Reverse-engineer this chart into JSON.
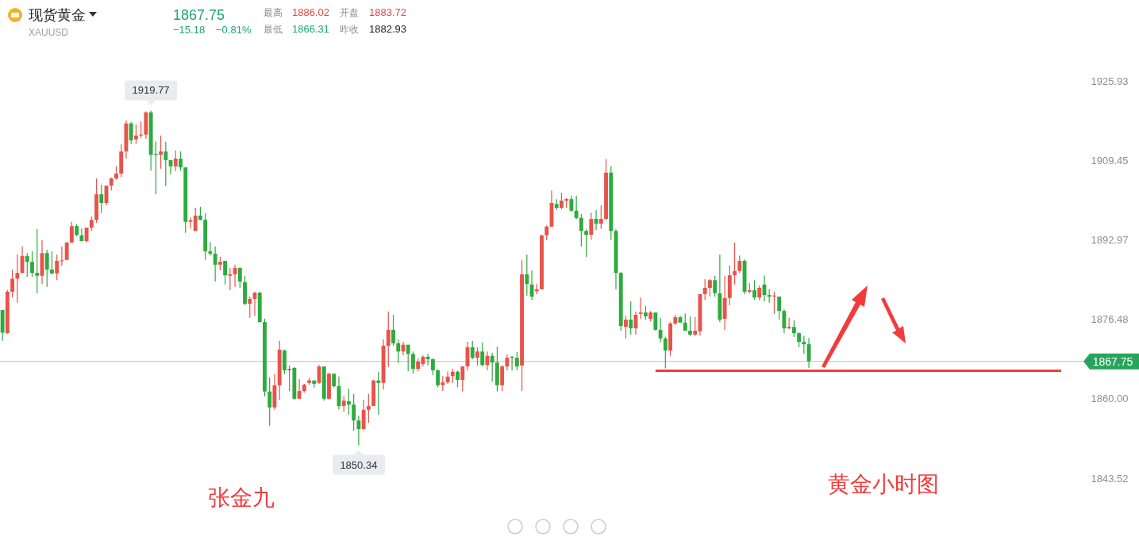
{
  "chart_data": {
    "type": "candlestick",
    "title": "现货黄金",
    "subtitle": "XAUUSD",
    "categories": [
      null,
      null,
      null,
      null,
      null,
      null,
      null,
      null,
      null,
      null,
      null,
      null,
      null,
      null,
      null,
      null,
      null,
      null,
      null,
      null,
      null,
      null,
      null,
      null,
      null,
      null,
      null,
      null,
      null,
      null,
      null,
      null,
      null,
      null,
      null,
      null,
      null,
      null,
      null,
      null,
      null,
      null,
      null,
      null,
      null,
      null,
      null,
      null,
      null,
      null,
      null,
      null,
      null,
      null,
      null,
      null,
      null,
      null,
      null,
      null,
      null,
      null,
      null,
      null,
      null,
      null,
      null,
      null,
      null,
      null,
      null,
      null,
      null,
      null,
      null,
      null,
      null,
      null,
      null,
      null,
      null,
      null,
      null,
      null,
      null,
      null,
      null,
      null,
      null,
      null,
      null,
      null,
      null,
      null,
      null,
      null,
      null,
      null,
      null,
      null,
      null,
      null,
      null,
      null,
      null,
      null,
      null,
      null,
      null,
      null,
      null,
      null,
      null,
      null,
      null,
      null,
      null,
      null,
      null,
      null,
      null,
      null,
      null,
      null,
      null,
      null,
      null,
      null,
      null,
      null,
      null,
      null,
      null,
      null,
      null,
      null,
      null,
      null,
      null,
      null,
      null,
      null,
      null,
      null,
      null,
      null,
      null,
      null,
      null,
      null,
      null,
      null,
      null,
      null,
      null,
      null,
      null,
      null,
      null,
      null,
      null,
      null,
      null,
      null,
      null,
      null,
      null,
      null,
      null,
      null,
      null,
      null,
      null,
      null,
      null,
      null,
      null,
      null,
      null,
      null,
      null,
      null,
      null,
      null,
      null,
      null,
      null,
      null,
      null,
      null,
      null,
      null,
      null,
      null,
      null,
      null,
      null,
      null,
      null,
      null,
      null,
      null,
      null,
      null,
      null,
      null,
      null,
      null,
      null,
      null,
      null,
      null,
      null,
      null,
      null,
      null,
      null,
      null,
      null
    ],
    "colors": [
      "#2dab3e",
      "#e8534a",
      "#e8534a",
      "#e8534a",
      "#e8534a",
      "#2dab3e",
      "#2dab3e",
      "#2dab3e",
      "#e8534a",
      "#2dab3e",
      "#2dab3e",
      "#e8534a",
      "#e8534a",
      "#e8534a",
      "#e8534a",
      "#2dab3e",
      "#2dab3e",
      "#e8534a",
      "#e8534a",
      "#e8534a",
      "#2dab3e",
      "#e8534a",
      "#e8534a",
      "#e8534a",
      "#e8534a",
      "#e8534a",
      "#2dab3e",
      "#e8534a",
      "#e8534a",
      "#e8534a",
      "#2dab3e",
      "#2dab3e",
      "#e8534a",
      "#2dab3e",
      "#2dab3e",
      "#e8534a",
      "#2dab3e",
      "#2dab3e",
      "#e8534a",
      "#e8534a",
      "#2dab3e",
      "#2dab3e",
      "#2dab3e",
      "#2dab3e",
      "#e8534a",
      "#2dab3e",
      "#e8534a",
      "#e8534a",
      "#2dab3e",
      "#2dab3e",
      "#e8534a",
      "#e8534a",
      "#2dab3e",
      "#2dab3e",
      "#2dab3e",
      "#e8534a",
      "#e8534a",
      "#2dab3e",
      "#e8534a",
      "#2dab3e",
      "#e8534a",
      "#e8534a",
      "#e8534a",
      "#2dab3e",
      "#e8534a",
      "#2dab3e",
      "#e8534a",
      "#2dab3e",
      "#2dab3e",
      "#e8534a",
      "#2dab3e",
      "#2dab3e",
      "#2dab3e",
      "#e8534a",
      "#e8534a",
      "#e8534a",
      "#2dab3e",
      "#e8534a",
      "#e8534a",
      "#2dab3e",
      "#2dab3e",
      "#e8534a",
      "#2dab3e",
      "#2dab3e",
      "#e8534a",
      "#e8534a",
      "#2dab3e",
      "#2dab3e",
      "#2dab3e",
      "#e8534a",
      "#e8534a",
      "#e8534a",
      "#2dab3e",
      "#e8534a",
      "#e8534a",
      "#2dab3e",
      "#e8534a",
      "#2dab3e",
      "#e8534a",
      "#2dab3e",
      "#2dab3e",
      "#e8534a",
      "#e8534a",
      "#2dab3e",
      "#2dab3e",
      "#e8534a",
      "#2dab3e",
      "#2dab3e",
      "#e8534a",
      "#e8534a",
      "#e8534a",
      "#e8534a",
      "#2dab3e",
      "#e8534a",
      "#e8534a",
      "#2dab3e",
      "#2dab3e",
      "#2dab3e",
      "#2dab3e",
      "#e8534a",
      "#2dab3e",
      "#e8534a",
      "#e8534a",
      "#2dab3e",
      "#2dab3e",
      "#2dab3e",
      "#e8534a",
      "#2dab3e",
      "#e8534a",
      "#e8534a",
      "#2dab3e",
      "#e8534a",
      "#2dab3e",
      "#2dab3e",
      "#2dab3e",
      "#e8534a",
      "#e8534a",
      "#2dab3e",
      "#2dab3e",
      "#2dab3e",
      "#e8534a",
      "#e8534a",
      "#e8534a",
      "#e8534a",
      "#2dab3e",
      "#2dab3e",
      "#e8534a",
      "#e8534a",
      "#e8534a",
      "#e8534a",
      "#2dab3e",
      "#e8534a",
      "#2dab3e",
      "#e8534a",
      "#2dab3e",
      "#2dab3e",
      "#e8534a",
      "#2dab3e",
      "#2dab3e",
      "#e8534a",
      "#2dab3e",
      "#2dab3e",
      "#2dab3e",
      "#2dab3e",
      null,
      null,
      null,
      null,
      null,
      null,
      null,
      null,
      null,
      null,
      null,
      null,
      null,
      null,
      null,
      null,
      null,
      null,
      null,
      null,
      null,
      null,
      null,
      null,
      null,
      null,
      null,
      null,
      null,
      null,
      null,
      null,
      null,
      null,
      null,
      null,
      null,
      null,
      null,
      null,
      null,
      null,
      null,
      null,
      null,
      null,
      null,
      null,
      null,
      null,
      null,
      null,
      null,
      null,
      null
    ],
    "ohlc": [
      [
        1878.4,
        1878.4,
        1872.0,
        1873.7
      ],
      [
        1873.6,
        1882.5,
        1873.5,
        1882.2
      ],
      [
        1882.2,
        1886.8,
        1881.0,
        1884.9
      ],
      [
        1884.9,
        1889.9,
        1879.9,
        1886.1
      ],
      [
        1886.1,
        1891.6,
        1886.0,
        1889.6
      ],
      [
        1889.6,
        1890.2,
        1885.3,
        1888.4
      ],
      [
        1888.4,
        1890.6,
        1885.3,
        1886.1
      ],
      [
        1886.1,
        1895.2,
        1881.9,
        1885.5
      ],
      [
        1885.5,
        1892.9,
        1883.8,
        1890.2
      ],
      [
        1890.2,
        1890.9,
        1883.2,
        1886.8
      ],
      [
        1886.8,
        1890.6,
        1885.8,
        1886.0
      ],
      [
        1886.0,
        1889.9,
        1884.6,
        1888.6
      ],
      [
        1888.6,
        1891.6,
        1887.6,
        1888.7
      ],
      [
        1888.8,
        1892.5,
        1888.8,
        1892.4
      ],
      [
        1892.4,
        1896.7,
        1892.4,
        1895.8
      ],
      [
        1895.8,
        1896.2,
        1893.7,
        1894.0
      ],
      [
        1893.9,
        1895.3,
        1892.7,
        1892.7
      ],
      [
        1892.7,
        1895.5,
        1892.4,
        1895.5
      ],
      [
        1895.5,
        1897.8,
        1894.8,
        1897.1
      ],
      [
        1897.1,
        1905.7,
        1896.5,
        1902.4
      ],
      [
        1902.4,
        1904.4,
        1898.5,
        1900.6
      ],
      [
        1900.6,
        1904.2,
        1900.1,
        1904.2
      ],
      [
        1904.2,
        1905.9,
        1903.2,
        1905.7
      ],
      [
        1905.7,
        1908.2,
        1905.4,
        1906.7
      ],
      [
        1906.7,
        1912.8,
        1906.0,
        1911.3
      ],
      [
        1911.3,
        1917.7,
        1909.8,
        1917.1
      ],
      [
        1917.1,
        1917.4,
        1912.8,
        1913.6
      ],
      [
        1913.8,
        1916.9,
        1912.9,
        1914.6
      ],
      [
        1914.6,
        1917.5,
        1914.1,
        1914.8
      ],
      [
        1914.8,
        1919.6,
        1913.9,
        1919.4
      ],
      [
        1919.4,
        1919.77,
        1907.3,
        1910.6
      ],
      [
        1910.8,
        1913.4,
        1902.4,
        1910.7
      ],
      [
        1910.6,
        1914.6,
        1907.7,
        1911.3
      ],
      [
        1911.3,
        1913.3,
        1904.1,
        1909.5
      ],
      [
        1909.5,
        1909.5,
        1906.5,
        1908.2
      ],
      [
        1908.2,
        1911.5,
        1907.2,
        1909.8
      ],
      [
        1909.8,
        1911.3,
        1907.3,
        1908.0
      ],
      [
        1908.0,
        1908.0,
        1894.4,
        1896.7
      ],
      [
        1896.7,
        1897.6,
        1895.3,
        1897.0
      ],
      [
        1894.8,
        1899.6,
        1894.8,
        1898.0
      ],
      [
        1898.0,
        1899.8,
        1897.0,
        1897.1
      ],
      [
        1897.1,
        1898.5,
        1888.8,
        1890.6
      ],
      [
        1890.6,
        1892.5,
        1889.7,
        1890.1
      ],
      [
        1890.1,
        1891.6,
        1884.3,
        1887.8
      ],
      [
        1887.8,
        1889.4,
        1886.6,
        1888.4
      ],
      [
        1888.6,
        1888.6,
        1883.7,
        1885.6
      ],
      [
        1885.5,
        1887.1,
        1882.5,
        1885.8
      ],
      [
        1885.8,
        1887.8,
        1883.2,
        1887.1
      ],
      [
        1887.1,
        1887.3,
        1883.0,
        1884.3
      ],
      [
        1884.2,
        1885.5,
        1879.4,
        1879.7
      ],
      [
        1879.7,
        1881.2,
        1876.8,
        1880.7
      ],
      [
        1880.7,
        1882.2,
        1877.2,
        1882.0
      ],
      [
        1882.0,
        1882.2,
        1875.8,
        1875.9
      ],
      [
        1875.9,
        1876.6,
        1860.5,
        1861.5
      ],
      [
        1861.5,
        1864.4,
        1854.4,
        1858.2
      ],
      [
        1858.2,
        1865.1,
        1857.7,
        1862.8
      ],
      [
        1862.8,
        1872.0,
        1859.8,
        1870.2
      ],
      [
        1870.0,
        1870.2,
        1865.1,
        1865.9
      ],
      [
        1865.9,
        1866.9,
        1861.6,
        1866.2
      ],
      [
        1866.4,
        1866.6,
        1859.8,
        1860.0
      ],
      [
        1860.0,
        1864.1,
        1860.0,
        1861.6
      ],
      [
        1861.6,
        1863.1,
        1861.3,
        1862.9
      ],
      [
        1863.3,
        1864.3,
        1862.9,
        1863.8
      ],
      [
        1863.8,
        1863.8,
        1862.3,
        1863.1
      ],
      [
        1863.3,
        1867.0,
        1863.1,
        1866.7
      ],
      [
        1866.7,
        1866.7,
        1859.6,
        1860.0
      ],
      [
        1860.0,
        1865.4,
        1859.8,
        1865.2
      ],
      [
        1865.2,
        1865.2,
        1862.3,
        1862.6
      ],
      [
        1862.6,
        1864.6,
        1857.8,
        1858.5
      ],
      [
        1858.5,
        1860.5,
        1857.3,
        1859.6
      ],
      [
        1859.5,
        1862.1,
        1856.7,
        1858.8
      ],
      [
        1858.8,
        1861.0,
        1853.4,
        1855.5
      ],
      [
        1855.5,
        1856.5,
        1850.34,
        1853.7
      ],
      [
        1853.7,
        1859.8,
        1853.6,
        1857.7
      ],
      [
        1857.7,
        1861.0,
        1855.0,
        1858.5
      ],
      [
        1858.5,
        1863.9,
        1858.5,
        1863.8
      ],
      [
        1863.8,
        1865.6,
        1856.7,
        1863.3
      ],
      [
        1863.3,
        1872.3,
        1861.9,
        1871.0
      ],
      [
        1871.0,
        1878.1,
        1866.6,
        1874.3
      ],
      [
        1874.3,
        1877.4,
        1871.0,
        1871.5
      ],
      [
        1871.5,
        1872.3,
        1867.4,
        1869.8
      ],
      [
        1869.8,
        1871.8,
        1869.0,
        1871.2
      ],
      [
        1871.2,
        1871.2,
        1865.7,
        1869.3
      ],
      [
        1869.3,
        1869.8,
        1865.2,
        1866.2
      ],
      [
        1866.2,
        1868.4,
        1865.7,
        1867.7
      ],
      [
        1867.2,
        1869.0,
        1866.7,
        1868.7
      ],
      [
        1868.7,
        1869.3,
        1866.9,
        1868.2
      ],
      [
        1868.2,
        1868.4,
        1864.9,
        1865.9
      ],
      [
        1865.9,
        1866.1,
        1862.4,
        1862.8
      ],
      [
        1862.8,
        1864.7,
        1861.6,
        1863.4
      ],
      [
        1863.4,
        1865.7,
        1863.1,
        1864.6
      ],
      [
        1864.7,
        1866.2,
        1863.3,
        1865.6
      ],
      [
        1865.6,
        1865.9,
        1862.4,
        1863.9
      ],
      [
        1863.9,
        1866.7,
        1861.5,
        1866.7
      ],
      [
        1866.7,
        1871.8,
        1865.9,
        1870.7
      ],
      [
        1870.7,
        1872.0,
        1868.2,
        1868.5
      ],
      [
        1868.5,
        1870.7,
        1866.9,
        1869.8
      ],
      [
        1869.8,
        1871.7,
        1866.7,
        1867.0
      ],
      [
        1867.0,
        1869.8,
        1865.9,
        1868.9
      ],
      [
        1868.9,
        1869.5,
        1863.6,
        1867.5
      ],
      [
        1867.5,
        1870.8,
        1861.5,
        1862.8
      ],
      [
        1862.8,
        1867.0,
        1861.6,
        1866.7
      ],
      [
        1866.7,
        1869.2,
        1865.9,
        1868.5
      ],
      [
        1868.7,
        1868.9,
        1865.9,
        1868.6
      ],
      [
        1868.5,
        1869.7,
        1865.9,
        1866.7
      ],
      [
        1866.9,
        1888.8,
        1861.6,
        1885.8
      ],
      [
        1885.8,
        1889.9,
        1881.4,
        1883.8
      ],
      [
        1883.7,
        1886.6,
        1880.5,
        1881.2
      ],
      [
        1882.3,
        1883.8,
        1881.7,
        1882.7
      ],
      [
        1882.7,
        1894.0,
        1882.7,
        1893.9
      ],
      [
        1893.9,
        1896.0,
        1892.9,
        1895.7
      ],
      [
        1895.7,
        1903.2,
        1895.7,
        1900.6
      ],
      [
        1900.4,
        1901.4,
        1899.1,
        1899.6
      ],
      [
        1899.6,
        1902.7,
        1899.3,
        1901.1
      ],
      [
        1901.1,
        1901.6,
        1899.6,
        1901.4
      ],
      [
        1901.4,
        1902.1,
        1898.8,
        1899.0
      ],
      [
        1899.0,
        1902.1,
        1897.3,
        1897.5
      ],
      [
        1897.5,
        1898.3,
        1891.6,
        1894.8
      ],
      [
        1894.8,
        1895.2,
        1889.4,
        1894.0
      ],
      [
        1894.0,
        1898.6,
        1893.0,
        1897.3
      ],
      [
        1897.3,
        1899.1,
        1895.0,
        1896.3
      ],
      [
        1896.3,
        1900.1,
        1895.2,
        1897.3
      ],
      [
        1897.3,
        1909.7,
        1897.1,
        1906.9
      ],
      [
        1906.9,
        1908.3,
        1892.9,
        1894.8
      ],
      [
        1894.8,
        1895.2,
        1882.7,
        1886.1
      ],
      [
        1886.1,
        1886.3,
        1874.1,
        1875.1
      ],
      [
        1874.9,
        1877.2,
        1872.5,
        1876.4
      ],
      [
        1876.4,
        1880.2,
        1873.3,
        1874.6
      ],
      [
        1874.6,
        1878.1,
        1873.3,
        1877.4
      ],
      [
        1877.6,
        1881.0,
        1876.6,
        1877.9
      ],
      [
        1877.9,
        1879.2,
        1876.4,
        1877.1
      ],
      [
        1876.6,
        1878.2,
        1876.1,
        1877.9
      ],
      [
        1877.9,
        1877.9,
        1874.1,
        1874.3
      ],
      [
        1874.3,
        1876.8,
        1871.7,
        1872.5
      ],
      [
        1872.5,
        1872.8,
        1866.31,
        1870.0
      ],
      [
        1870.0,
        1875.9,
        1868.9,
        1875.6
      ],
      [
        1875.6,
        1877.4,
        1875.3,
        1876.9
      ],
      [
        1876.9,
        1877.2,
        1875.8,
        1875.8
      ],
      [
        1875.8,
        1877.7,
        1874.1,
        1874.1
      ],
      [
        1874.1,
        1877.1,
        1873.0,
        1873.3
      ],
      [
        1873.3,
        1876.9,
        1873.0,
        1874.1
      ],
      [
        1874.0,
        1881.7,
        1873.1,
        1881.7
      ],
      [
        1881.7,
        1884.8,
        1880.5,
        1883.0
      ],
      [
        1883.0,
        1884.8,
        1881.2,
        1884.6
      ],
      [
        1884.6,
        1885.5,
        1881.2,
        1881.9
      ],
      [
        1881.9,
        1889.9,
        1875.9,
        1876.4
      ],
      [
        1876.6,
        1885.5,
        1874.3,
        1880.9
      ],
      [
        1880.9,
        1887.6,
        1879.4,
        1885.6
      ],
      [
        1885.6,
        1892.4,
        1883.7,
        1886.5
      ],
      [
        1886.5,
        1889.7,
        1886.1,
        1888.6
      ],
      [
        1888.6,
        1888.9,
        1881.7,
        1882.2
      ],
      [
        1882.2,
        1884.0,
        1881.9,
        1882.5
      ],
      [
        1882.5,
        1884.6,
        1880.5,
        1881.0
      ],
      [
        1881.0,
        1883.5,
        1880.4,
        1883.0
      ],
      [
        1883.7,
        1885.6,
        1880.2,
        1881.5
      ],
      [
        1881.5,
        1882.7,
        1879.9,
        1881.2
      ],
      [
        1881.3,
        1882.2,
        1877.6,
        1881.4
      ],
      [
        1881.2,
        1881.2,
        1876.4,
        1878.2
      ],
      [
        1878.2,
        1878.6,
        1873.6,
        1874.6
      ],
      [
        1874.6,
        1876.8,
        1874.4,
        1874.9
      ],
      [
        1874.9,
        1876.3,
        1872.8,
        1873.6
      ],
      [
        1873.6,
        1873.8,
        1870.7,
        1871.8
      ],
      [
        1871.8,
        1873.0,
        1869.3,
        1871.3
      ],
      [
        1871.3,
        1872.6,
        1866.4,
        1867.75
      ],
      null,
      null,
      null,
      null,
      null,
      null,
      null,
      null,
      null,
      null,
      null,
      null,
      null,
      null,
      null,
      null,
      null,
      null,
      null,
      null,
      null,
      null,
      null,
      null,
      null,
      null,
      null,
      null,
      null,
      null,
      null,
      null,
      null,
      null,
      null,
      null,
      null,
      null,
      null,
      null,
      null,
      null,
      null,
      null,
      null,
      null,
      null,
      null,
      null,
      null,
      null,
      null,
      null,
      null,
      null
    ],
    "series": [
      {
        "type": "line",
        "color": "#f23b3b",
        "values": [
          null,
          null,
          null,
          null,
          null,
          null,
          null,
          null,
          null,
          null,
          null,
          null,
          null,
          null,
          null,
          null,
          null,
          null,
          null,
          null,
          null,
          null,
          null,
          null,
          null,
          null,
          null,
          null,
          null,
          null,
          null,
          null,
          null,
          null,
          null,
          null,
          null,
          null,
          null,
          null,
          null,
          null,
          null,
          null,
          null,
          null,
          null,
          null,
          null,
          null,
          null,
          null,
          null,
          null,
          null,
          null,
          null,
          null,
          null,
          null,
          null,
          null,
          null,
          null,
          null,
          null,
          null,
          null,
          null,
          null,
          null,
          null,
          null,
          null,
          null,
          null,
          null,
          null,
          null,
          null,
          null,
          null,
          null,
          null,
          null,
          null,
          null,
          null,
          null,
          null,
          null,
          null,
          null,
          null,
          null,
          null,
          null,
          null,
          null,
          null,
          null,
          null,
          null,
          null,
          null,
          null,
          null,
          null,
          null,
          null,
          null,
          null,
          null,
          null,
          null,
          null,
          null,
          null,
          null,
          null,
          null,
          null,
          null,
          null,
          null,
          null,
          null,
          null,
          null,
          null,
          null,
          null,
          1865.8,
          1865.8,
          1865.8,
          1865.8,
          1865.8,
          1865.8,
          1865.8,
          1865.8,
          1865.8,
          1865.8,
          1865.8,
          1865.8,
          1865.8,
          1865.8,
          1865.8,
          1865.8,
          1865.8,
          1865.8,
          1865.8,
          1865.8,
          1865.8,
          1865.8,
          1865.8,
          1865.8,
          1865.8,
          1865.8,
          1865.8,
          1865.8,
          1865.8,
          1865.8,
          1865.8,
          1865.8,
          1865.8,
          1865.8,
          1865.8,
          1865.8,
          1865.8,
          1865.8,
          1865.8,
          1865.8,
          1865.8,
          1865.8,
          1865.8,
          1865.8,
          1865.8,
          1865.8,
          1865.8,
          1865.8,
          1865.8,
          1865.8,
          1865.8,
          1865.8,
          1865.8,
          1865.8,
          1865.8,
          1865.8,
          1865.8,
          1865.8,
          1865.8,
          1865.8,
          1865.8,
          1865.8,
          1865.8,
          1865.8,
          1865.8,
          1865.8,
          1865.8,
          1865.8,
          1865.8,
          1865.8,
          1865.8,
          1865.8,
          1865.8,
          1865.8,
          1865.8,
          1865.8,
          1865.8,
          1865.8,
          1865.8,
          1865.8,
          1865.8,
          1865.8,
          1865.8,
          null,
          null,
          null,
          null
        ]
      }
    ],
    "ylim": [
      1843.52,
      1925.93
    ],
    "yticks": [
      1843.52,
      {
        "value": 1860,
        "label": "1860.00"
      },
      1876.48,
      1892.97,
      1909.45,
      1925.93
    ],
    "tick_labels": "y",
    "ref_lines": [
      {
        "axis": "y",
        "value": 1867.75,
        "label": "1867.75",
        "color": "#27a55b"
      }
    ],
    "annotations": [
      "1867.75",
      "−15.18",
      "−0.81%",
      "最高",
      "1886.02",
      "开盘",
      "1883.72",
      "最低",
      "1866.31",
      "昨收",
      "1882.93",
      {
        "text": "1919.77",
        "y": 1919.77
      },
      {
        "text": "1850.34",
        "y": 1850.34
      },
      "张金九",
      "黄金小时图"
    ]
  }
}
